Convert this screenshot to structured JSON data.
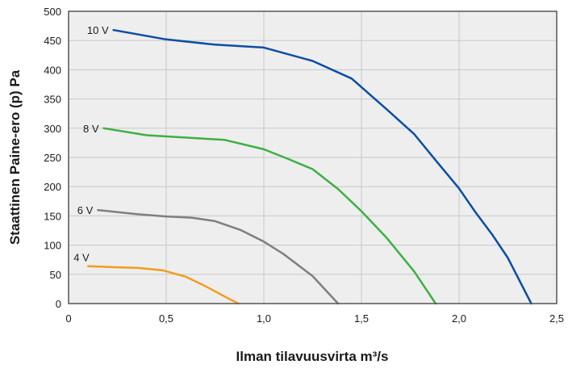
{
  "chart_data": {
    "type": "line",
    "title": "",
    "xlabel": "Ilman tilavuusvirta m³/s",
    "ylabel": "Staattinen Paine-ero (p) Pa",
    "xlim": [
      0,
      2.5
    ],
    "ylim": [
      0,
      500
    ],
    "x_ticks": [
      "0",
      "0,5",
      "1,0",
      "1,5",
      "2,0",
      "2,5"
    ],
    "x_tick_values": [
      0,
      0.5,
      1.0,
      1.5,
      2.0,
      2.5
    ],
    "y_ticks": [
      "0",
      "50",
      "100",
      "150",
      "200",
      "250",
      "300",
      "350",
      "400",
      "450",
      "500"
    ],
    "y_tick_values": [
      0,
      50,
      100,
      150,
      200,
      250,
      300,
      350,
      400,
      450,
      500
    ],
    "grid": true,
    "background": "#eeeeee",
    "series": [
      {
        "name": "10 V",
        "color": "#0b4ea2",
        "points": [
          [
            0.23,
            468
          ],
          [
            0.5,
            452
          ],
          [
            0.75,
            443
          ],
          [
            1.0,
            438
          ],
          [
            1.25,
            415
          ],
          [
            1.45,
            385
          ],
          [
            1.63,
            332
          ],
          [
            1.77,
            290
          ],
          [
            1.88,
            245
          ],
          [
            2.0,
            197
          ],
          [
            2.08,
            158
          ],
          [
            2.17,
            118
          ],
          [
            2.25,
            78
          ],
          [
            2.37,
            0
          ]
        ]
      },
      {
        "name": "8 V",
        "color": "#3cb043",
        "points": [
          [
            0.18,
            300
          ],
          [
            0.4,
            288
          ],
          [
            0.6,
            284
          ],
          [
            0.8,
            280
          ],
          [
            1.0,
            264
          ],
          [
            1.12,
            248
          ],
          [
            1.25,
            230
          ],
          [
            1.38,
            196
          ],
          [
            1.5,
            158
          ],
          [
            1.63,
            112
          ],
          [
            1.77,
            55
          ],
          [
            1.88,
            0
          ]
        ]
      },
      {
        "name": "6 V",
        "color": "#7f7f7f",
        "points": [
          [
            0.15,
            160
          ],
          [
            0.35,
            153
          ],
          [
            0.5,
            149
          ],
          [
            0.63,
            147
          ],
          [
            0.75,
            141
          ],
          [
            0.88,
            126
          ],
          [
            1.0,
            106
          ],
          [
            1.1,
            85
          ],
          [
            1.25,
            47
          ],
          [
            1.38,
            0
          ]
        ]
      },
      {
        "name": "4 V",
        "color": "#f39c1f",
        "points": [
          [
            0.1,
            64
          ],
          [
            0.25,
            62
          ],
          [
            0.35,
            61
          ],
          [
            0.48,
            57
          ],
          [
            0.6,
            46
          ],
          [
            0.7,
            30
          ],
          [
            0.8,
            12
          ],
          [
            0.87,
            0
          ]
        ]
      }
    ]
  }
}
